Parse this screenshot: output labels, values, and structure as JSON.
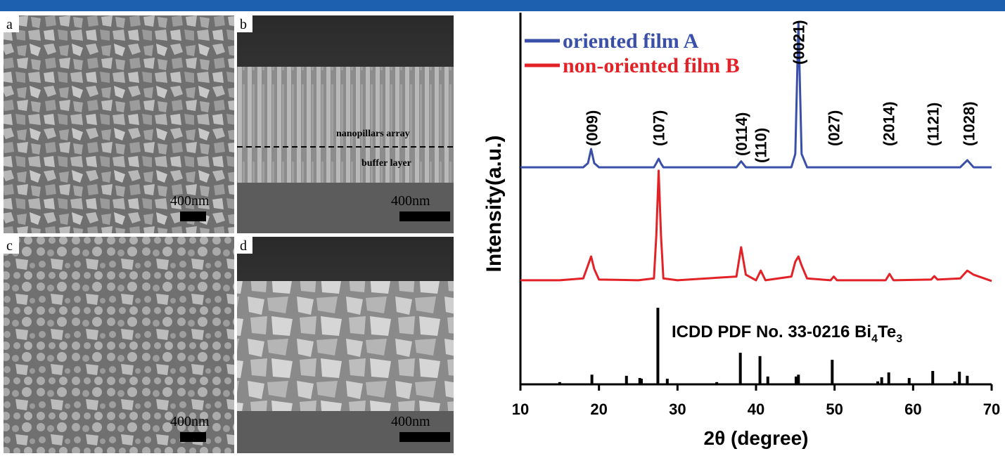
{
  "sem_panels": [
    {
      "label": "a",
      "scale": "400nm"
    },
    {
      "label": "b",
      "scale": "400nm",
      "annotations": [
        "nanopillars array",
        "buffer layer"
      ]
    },
    {
      "label": "c",
      "scale": "400nm"
    },
    {
      "label": "d",
      "scale": "400nm"
    }
  ],
  "chart_data": {
    "type": "line",
    "xlabel": "2θ (degree)",
    "ylabel": "Intensity(a.u.)",
    "xlim": [
      10,
      70
    ],
    "xticks": [
      10,
      20,
      30,
      40,
      50,
      60,
      70
    ],
    "ylim": [
      0,
      100
    ],
    "legend": "upper left",
    "x": [
      10,
      15,
      18,
      18.6,
      19,
      19.4,
      20,
      25,
      27,
      27.3,
      27.6,
      27.9,
      28.2,
      30,
      37.5,
      38.1,
      38.7,
      40,
      40.6,
      41.2,
      44.5,
      45,
      45.4,
      45.8,
      46.5,
      49.5,
      49.9,
      50.3,
      56.5,
      57,
      57.5,
      62.3,
      62.7,
      63.1,
      66,
      66.9,
      67.7,
      70
    ],
    "series": [
      {
        "name": "oriented film A",
        "color": "#3a4fa8",
        "values": [
          58.4,
          58.4,
          58.4,
          59.5,
          63.3,
          59.5,
          58.4,
          58.4,
          58.4,
          59.5,
          60.7,
          59.4,
          58.4,
          58.4,
          58.4,
          60,
          58.4,
          58.4,
          58.4,
          58.4,
          58.4,
          62,
          97.4,
          62,
          58.4,
          58.4,
          58.4,
          58.4,
          58.4,
          58.4,
          58.4,
          58.4,
          58.4,
          58.4,
          58.4,
          60.3,
          58.4,
          58.4
        ]
      },
      {
        "name": "non-oriented film B",
        "color": "#e32228",
        "values": [
          28,
          28,
          28.5,
          32,
          34.4,
          31,
          28.2,
          28,
          28.5,
          40,
          57.5,
          40,
          28.5,
          28,
          29,
          36.9,
          29.5,
          28,
          30.6,
          28,
          29,
          33,
          34.4,
          32,
          28.5,
          28,
          29,
          28,
          28,
          29.7,
          28,
          28.2,
          29.1,
          28.2,
          28.5,
          30.6,
          29.5,
          27.8
        ]
      }
    ],
    "reference": {
      "name_parts": [
        "ICDD PDF No. 33-0216 Bi",
        "4",
        "Te",
        "3"
      ],
      "color": "#000000",
      "x": [
        15,
        19.1,
        23.5,
        25.2,
        25.4,
        27.5,
        28.7,
        35,
        38,
        40.5,
        41.5,
        45.1,
        45.4,
        49.7,
        55.5,
        56,
        56.9,
        59.5,
        62.5,
        65.3,
        65.9,
        66.9
      ],
      "values": [
        0.6,
        2.6,
        2.3,
        1.7,
        1.5,
        20.6,
        1.5,
        0.6,
        8.5,
        7.6,
        2.1,
        2.1,
        2.6,
        6.6,
        0.8,
        1.9,
        3.2,
        1.7,
        3.6,
        0.8,
        3.4,
        2.3
      ]
    },
    "peak_labels": [
      {
        "text": "(009)",
        "x": 19.1
      },
      {
        "text": "(107)",
        "x": 27.6
      },
      {
        "text": "(0114)",
        "x": 38.1
      },
      {
        "text": "(110)",
        "x": 40.6
      },
      {
        "text": "(0021)",
        "x": 45.4
      },
      {
        "text": "(027)",
        "x": 49.9
      },
      {
        "text": "(2014)",
        "x": 56.9
      },
      {
        "text": "(1121)",
        "x": 62.5
      },
      {
        "text": "(1028)",
        "x": 67.1
      }
    ]
  }
}
